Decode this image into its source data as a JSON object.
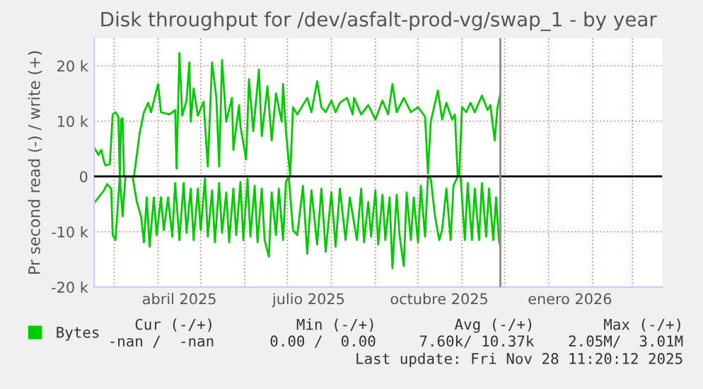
{
  "chart_data": {
    "type": "line",
    "title": "Disk throughput for /dev/asfalt-prod-vg/swap_1 - by year",
    "ylabel": "Pr second read (-) / write (+)",
    "xlim": [
      "2025-02-15",
      "2026-03-22"
    ],
    "xticks": [
      {
        "value": "2025-04-16",
        "label": "abril 2025"
      },
      {
        "value": "2025-07-16",
        "label": "julio 2025"
      },
      {
        "value": "2025-10-16",
        "label": "octubre 2025"
      },
      {
        "value": "2026-01-16",
        "label": "enero 2026"
      }
    ],
    "ylim": [
      -20000,
      25000
    ],
    "yticks": [
      {
        "value": -20000,
        "label": "-20 k"
      },
      {
        "value": -10000,
        "label": "-10 k"
      },
      0,
      {
        "value": 10000,
        "label": "10 k"
      },
      {
        "value": 20000,
        "label": "20 k"
      }
    ],
    "grid": true,
    "legend": "bottom",
    "ref_lines": [
      {
        "axis": "y",
        "value": 0,
        "color": "#000000"
      },
      {
        "axis": "x",
        "value": "2025-11-28",
        "color": "#888888"
      }
    ],
    "annotations": [
      "Cur (-/+)",
      "Min (-/+)",
      "Avg (-/+)",
      "Max (-/+)",
      "-nan /  -nan",
      "0.00 /  0.00",
      "7.60k/ 10.37k",
      "2.05M/  3.01M",
      "Last update: Fri Nov 28 11:20:12 2025"
    ],
    "series": [
      {
        "name": "Bytes",
        "color": "#00cc00",
        "x": [
          "2025-02-15",
          "2025-02-18",
          "2025-02-20",
          "2025-02-22",
          "2025-02-23",
          "2025-02-26",
          "2025-02-28",
          "2025-03-02",
          "2025-03-04",
          "2025-03-05",
          "2025-03-06",
          "2025-03-07",
          "2025-03-08",
          "2025-03-15",
          "2025-03-19",
          "2025-03-22",
          "2025-03-25",
          "2025-03-27",
          "2025-04-01",
          "2025-04-03",
          "2025-04-09",
          "2025-04-13",
          "2025-04-14",
          "2025-04-16",
          "2025-04-18",
          "2025-04-21",
          "2025-04-23",
          "2025-04-24",
          "2025-04-26",
          "2025-04-29",
          "2025-05-03",
          "2025-05-06",
          "2025-05-09",
          "2025-05-12",
          "2025-05-14",
          "2025-05-16",
          "2025-05-19",
          "2025-05-23",
          "2025-05-24",
          "2025-05-28",
          "2025-05-29",
          "2025-06-02",
          "2025-06-04",
          "2025-06-07",
          "2025-06-11",
          "2025-06-13",
          "2025-06-17",
          "2025-06-20",
          "2025-06-23",
          "2025-06-27",
          "2025-06-28",
          "2025-06-30",
          "2025-07-03",
          "2025-07-05",
          "2025-07-08",
          "2025-07-15",
          "2025-07-18",
          "2025-07-22",
          "2025-07-25",
          "2025-07-28",
          "2025-08-01",
          "2025-08-04",
          "2025-08-07",
          "2025-08-12",
          "2025-08-16",
          "2025-08-17",
          "2025-08-22",
          "2025-08-27",
          "2025-09-01",
          "2025-09-06",
          "2025-09-10",
          "2025-09-13",
          "2025-09-16",
          "2025-09-21",
          "2025-09-26",
          "2025-10-01",
          "2025-10-06",
          "2025-10-08",
          "2025-10-10",
          "2025-10-15",
          "2025-10-18",
          "2025-10-21",
          "2025-10-25",
          "2025-10-27",
          "2025-10-29",
          "2025-10-30",
          "2025-11-01",
          "2025-11-04",
          "2025-11-07",
          "2025-11-10",
          "2025-11-15",
          "2025-11-19",
          "2025-11-21",
          "2025-11-24",
          "2025-11-26",
          "2025-11-28"
        ],
        "values": [
          5200,
          3900,
          4800,
          2600,
          2000,
          2200,
          11200,
          11600,
          10800,
          0,
          10300,
          10500,
          0,
          0,
          7800,
          11600,
          13300,
          11600,
          16700,
          11600,
          11200,
          12000,
          1400,
          22300,
          11000,
          13700,
          20600,
          9900,
          15900,
          11000,
          13500,
          1800,
          20600,
          14200,
          1800,
          21000,
          9900,
          14200,
          4800,
          12900,
          9000,
          3100,
          17600,
          8200,
          19300,
          7300,
          16300,
          6500,
          15000,
          9900,
          16700,
          8200,
          0,
          12500,
          11200,
          14200,
          11600,
          17200,
          12500,
          11600,
          13700,
          11600,
          13300,
          14200,
          11200,
          14200,
          11200,
          12900,
          10300,
          13700,
          11200,
          16700,
          11600,
          14200,
          11600,
          12500,
          10800,
          500,
          9900,
          15500,
          10300,
          13300,
          10300,
          11200,
          0,
          0,
          12500,
          11600,
          13300,
          11600,
          14600,
          12000,
          12900,
          6500,
          12500,
          15000
        ]
      },
      {
        "color": "#00cc00",
        "x": [
          "2025-02-15",
          "2025-02-18",
          "2025-02-22",
          "2025-02-24",
          "2025-02-27",
          "2025-02-28",
          "2025-03-02",
          "2025-03-04",
          "2025-03-05",
          "2025-03-07",
          "2025-03-09",
          "2025-03-14",
          "2025-03-17",
          "2025-03-20",
          "2025-03-22",
          "2025-03-24",
          "2025-03-26",
          "2025-03-29",
          "2025-03-31",
          "2025-04-03",
          "2025-04-05",
          "2025-04-08",
          "2025-04-11",
          "2025-04-13",
          "2025-04-16",
          "2025-04-19",
          "2025-04-21",
          "2025-04-24",
          "2025-04-26",
          "2025-04-29",
          "2025-05-01",
          "2025-05-04",
          "2025-05-06",
          "2025-05-09",
          "2025-05-11",
          "2025-05-14",
          "2025-05-16",
          "2025-05-19",
          "2025-05-21",
          "2025-05-24",
          "2025-05-26",
          "2025-05-29",
          "2025-05-31",
          "2025-06-03",
          "2025-06-05",
          "2025-06-08",
          "2025-06-10",
          "2025-06-13",
          "2025-06-15",
          "2025-06-18",
          "2025-06-20",
          "2025-06-23",
          "2025-06-25",
          "2025-06-28",
          "2025-06-30",
          "2025-07-02",
          "2025-07-05",
          "2025-07-08",
          "2025-07-12",
          "2025-07-15",
          "2025-07-18",
          "2025-07-22",
          "2025-07-25",
          "2025-07-28",
          "2025-08-01",
          "2025-08-04",
          "2025-08-07",
          "2025-08-11",
          "2025-08-14",
          "2025-08-19",
          "2025-08-22",
          "2025-08-24",
          "2025-08-27",
          "2025-08-29",
          "2025-09-01",
          "2025-09-03",
          "2025-09-06",
          "2025-09-08",
          "2025-09-11",
          "2025-09-13",
          "2025-09-16",
          "2025-09-18",
          "2025-09-21",
          "2025-09-23",
          "2025-09-26",
          "2025-09-28",
          "2025-10-01",
          "2025-10-03",
          "2025-10-06",
          "2025-10-08",
          "2025-10-10",
          "2025-10-13",
          "2025-10-16",
          "2025-10-18",
          "2025-10-21",
          "2025-10-24",
          "2025-10-26",
          "2025-10-29",
          "2025-10-31",
          "2025-11-03",
          "2025-11-05",
          "2025-11-08",
          "2025-11-10",
          "2025-11-13",
          "2025-11-15",
          "2025-11-18",
          "2025-11-20",
          "2025-11-23",
          "2025-11-25",
          "2025-11-27",
          "2025-11-28"
        ],
        "values": [
          -4800,
          -3800,
          -2500,
          -1400,
          -2200,
          -10600,
          -11500,
          -3800,
          0,
          -7200,
          0,
          0,
          -4600,
          -7200,
          -11900,
          -3800,
          -12700,
          -3800,
          -10600,
          -3800,
          -9700,
          -3800,
          -10900,
          -1200,
          -11500,
          -1200,
          -10200,
          -2200,
          -11500,
          -2200,
          -9700,
          -400,
          -10900,
          -2500,
          -11900,
          -1200,
          -10200,
          -2900,
          -11900,
          -2200,
          -10600,
          -1000,
          -11500,
          -400,
          -10900,
          -1700,
          -11900,
          -2200,
          -11500,
          -14500,
          -2900,
          -10600,
          -2200,
          -11500,
          -1000,
          0,
          -9700,
          -10600,
          -1700,
          -14000,
          -2500,
          -12300,
          -2200,
          -13600,
          -2900,
          -12700,
          -2200,
          -11500,
          -3800,
          -11500,
          -2200,
          -11900,
          -4600,
          -10900,
          -2500,
          -12300,
          -3300,
          -11500,
          -3800,
          -16600,
          -3300,
          -10600,
          -16200,
          -2900,
          -11500,
          -3800,
          -11900,
          -1700,
          -10900,
          0,
          -400,
          -7200,
          -11500,
          -9700,
          -2200,
          -11500,
          -1700,
          0,
          0,
          -11500,
          -1200,
          -11500,
          -2200,
          -11500,
          -1200,
          -10900,
          -2200,
          -11500,
          -3800,
          -11500,
          -12700
        ]
      }
    ]
  }
}
